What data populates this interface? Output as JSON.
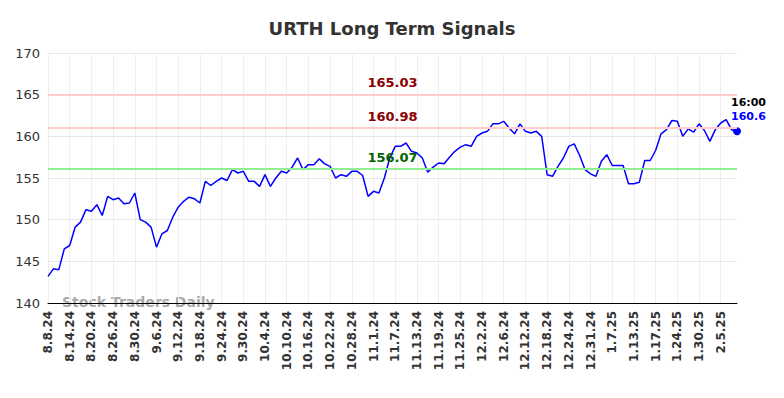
{
  "chart_data": {
    "type": "line",
    "title": "URTH Long Term Signals",
    "categories": [
      "8.8.24",
      null,
      null,
      null,
      "8.14.24",
      null,
      null,
      null,
      "8.20.24",
      null,
      null,
      null,
      "8.26.24",
      null,
      null,
      null,
      "8.30.24",
      null,
      null,
      null,
      "9.6.24",
      null,
      null,
      null,
      "9.12.24",
      null,
      null,
      null,
      "9.18.24",
      null,
      null,
      null,
      "9.24.24",
      null,
      null,
      null,
      "9.30.24",
      null,
      null,
      null,
      "10.4.24",
      null,
      null,
      null,
      "10.10.24",
      null,
      null,
      null,
      "10.16.24",
      null,
      null,
      null,
      "10.22.24",
      null,
      null,
      null,
      "10.28.24",
      null,
      null,
      null,
      "11.1.24",
      null,
      null,
      null,
      "11.7.24",
      null,
      null,
      null,
      "11.13.24",
      null,
      null,
      null,
      "11.19.24",
      null,
      null,
      null,
      "11.25.24",
      null,
      null,
      null,
      "12.2.24",
      null,
      null,
      null,
      "12.6.24",
      null,
      null,
      null,
      "12.12.24",
      null,
      null,
      null,
      "12.18.24",
      null,
      null,
      null,
      "12.24.24",
      null,
      null,
      null,
      "12.31.24",
      null,
      null,
      null,
      "1.7.25",
      null,
      null,
      null,
      "1.13.25",
      null,
      null,
      null,
      "1.17.25",
      null,
      null,
      null,
      "1.24.25",
      null,
      null,
      null,
      "1.30.25",
      null,
      null,
      null,
      "2.5.25",
      null,
      null,
      null
    ],
    "values": [
      143.2,
      144.1,
      144.0,
      146.5,
      146.9,
      149.1,
      149.7,
      151.2,
      151.0,
      151.8,
      150.5,
      152.8,
      152.4,
      152.6,
      151.9,
      152.0,
      153.2,
      150.0,
      149.7,
      149.1,
      146.7,
      148.3,
      148.7,
      150.3,
      151.5,
      152.2,
      152.7,
      152.5,
      152.0,
      154.6,
      154.1,
      154.6,
      155.0,
      154.7,
      156.0,
      155.6,
      155.8,
      154.6,
      154.6,
      154.0,
      155.4,
      154.0,
      155.0,
      155.8,
      155.6,
      156.3,
      157.4,
      156.0,
      156.6,
      156.6,
      157.3,
      156.7,
      156.4,
      155.0,
      155.4,
      155.2,
      155.8,
      155.8,
      155.3,
      152.8,
      153.4,
      153.2,
      155.0,
      157.4,
      158.8,
      158.8,
      159.2,
      158.2,
      158.0,
      157.4,
      155.7,
      156.3,
      156.8,
      156.7,
      157.5,
      158.2,
      158.7,
      159.0,
      158.8,
      160.0,
      160.4,
      160.6,
      161.5,
      161.5,
      161.8,
      161.0,
      160.3,
      161.5,
      160.6,
      160.4,
      160.6,
      160.0,
      155.4,
      155.2,
      156.4,
      157.4,
      158.8,
      159.1,
      157.7,
      156.0,
      155.5,
      155.2,
      157.0,
      157.8,
      156.5,
      156.5,
      156.5,
      154.3,
      154.3,
      154.5,
      157.1,
      157.1,
      158.3,
      160.3,
      160.8,
      161.9,
      161.8,
      160.0,
      160.9,
      160.5,
      161.5,
      160.7,
      159.4,
      160.8,
      161.6,
      162.0,
      160.8,
      160.6
    ],
    "color": "#0000ff",
    "ylim": [
      140,
      170
    ],
    "yticks": [
      140,
      145,
      150,
      155,
      160,
      165,
      170
    ],
    "grid": true,
    "levels": [
      {
        "value": 165.03,
        "color": "#ffcccc",
        "label_color": "#8b0000"
      },
      {
        "value": 160.98,
        "color": "#ffcccc",
        "label_color": "#8b0000"
      },
      {
        "value": 156.07,
        "color": "#90ee90",
        "label_color": "#006400"
      }
    ],
    "last_label": {
      "time": "16:00",
      "value": 160.6
    },
    "watermark": "Stock Traders Daily"
  }
}
